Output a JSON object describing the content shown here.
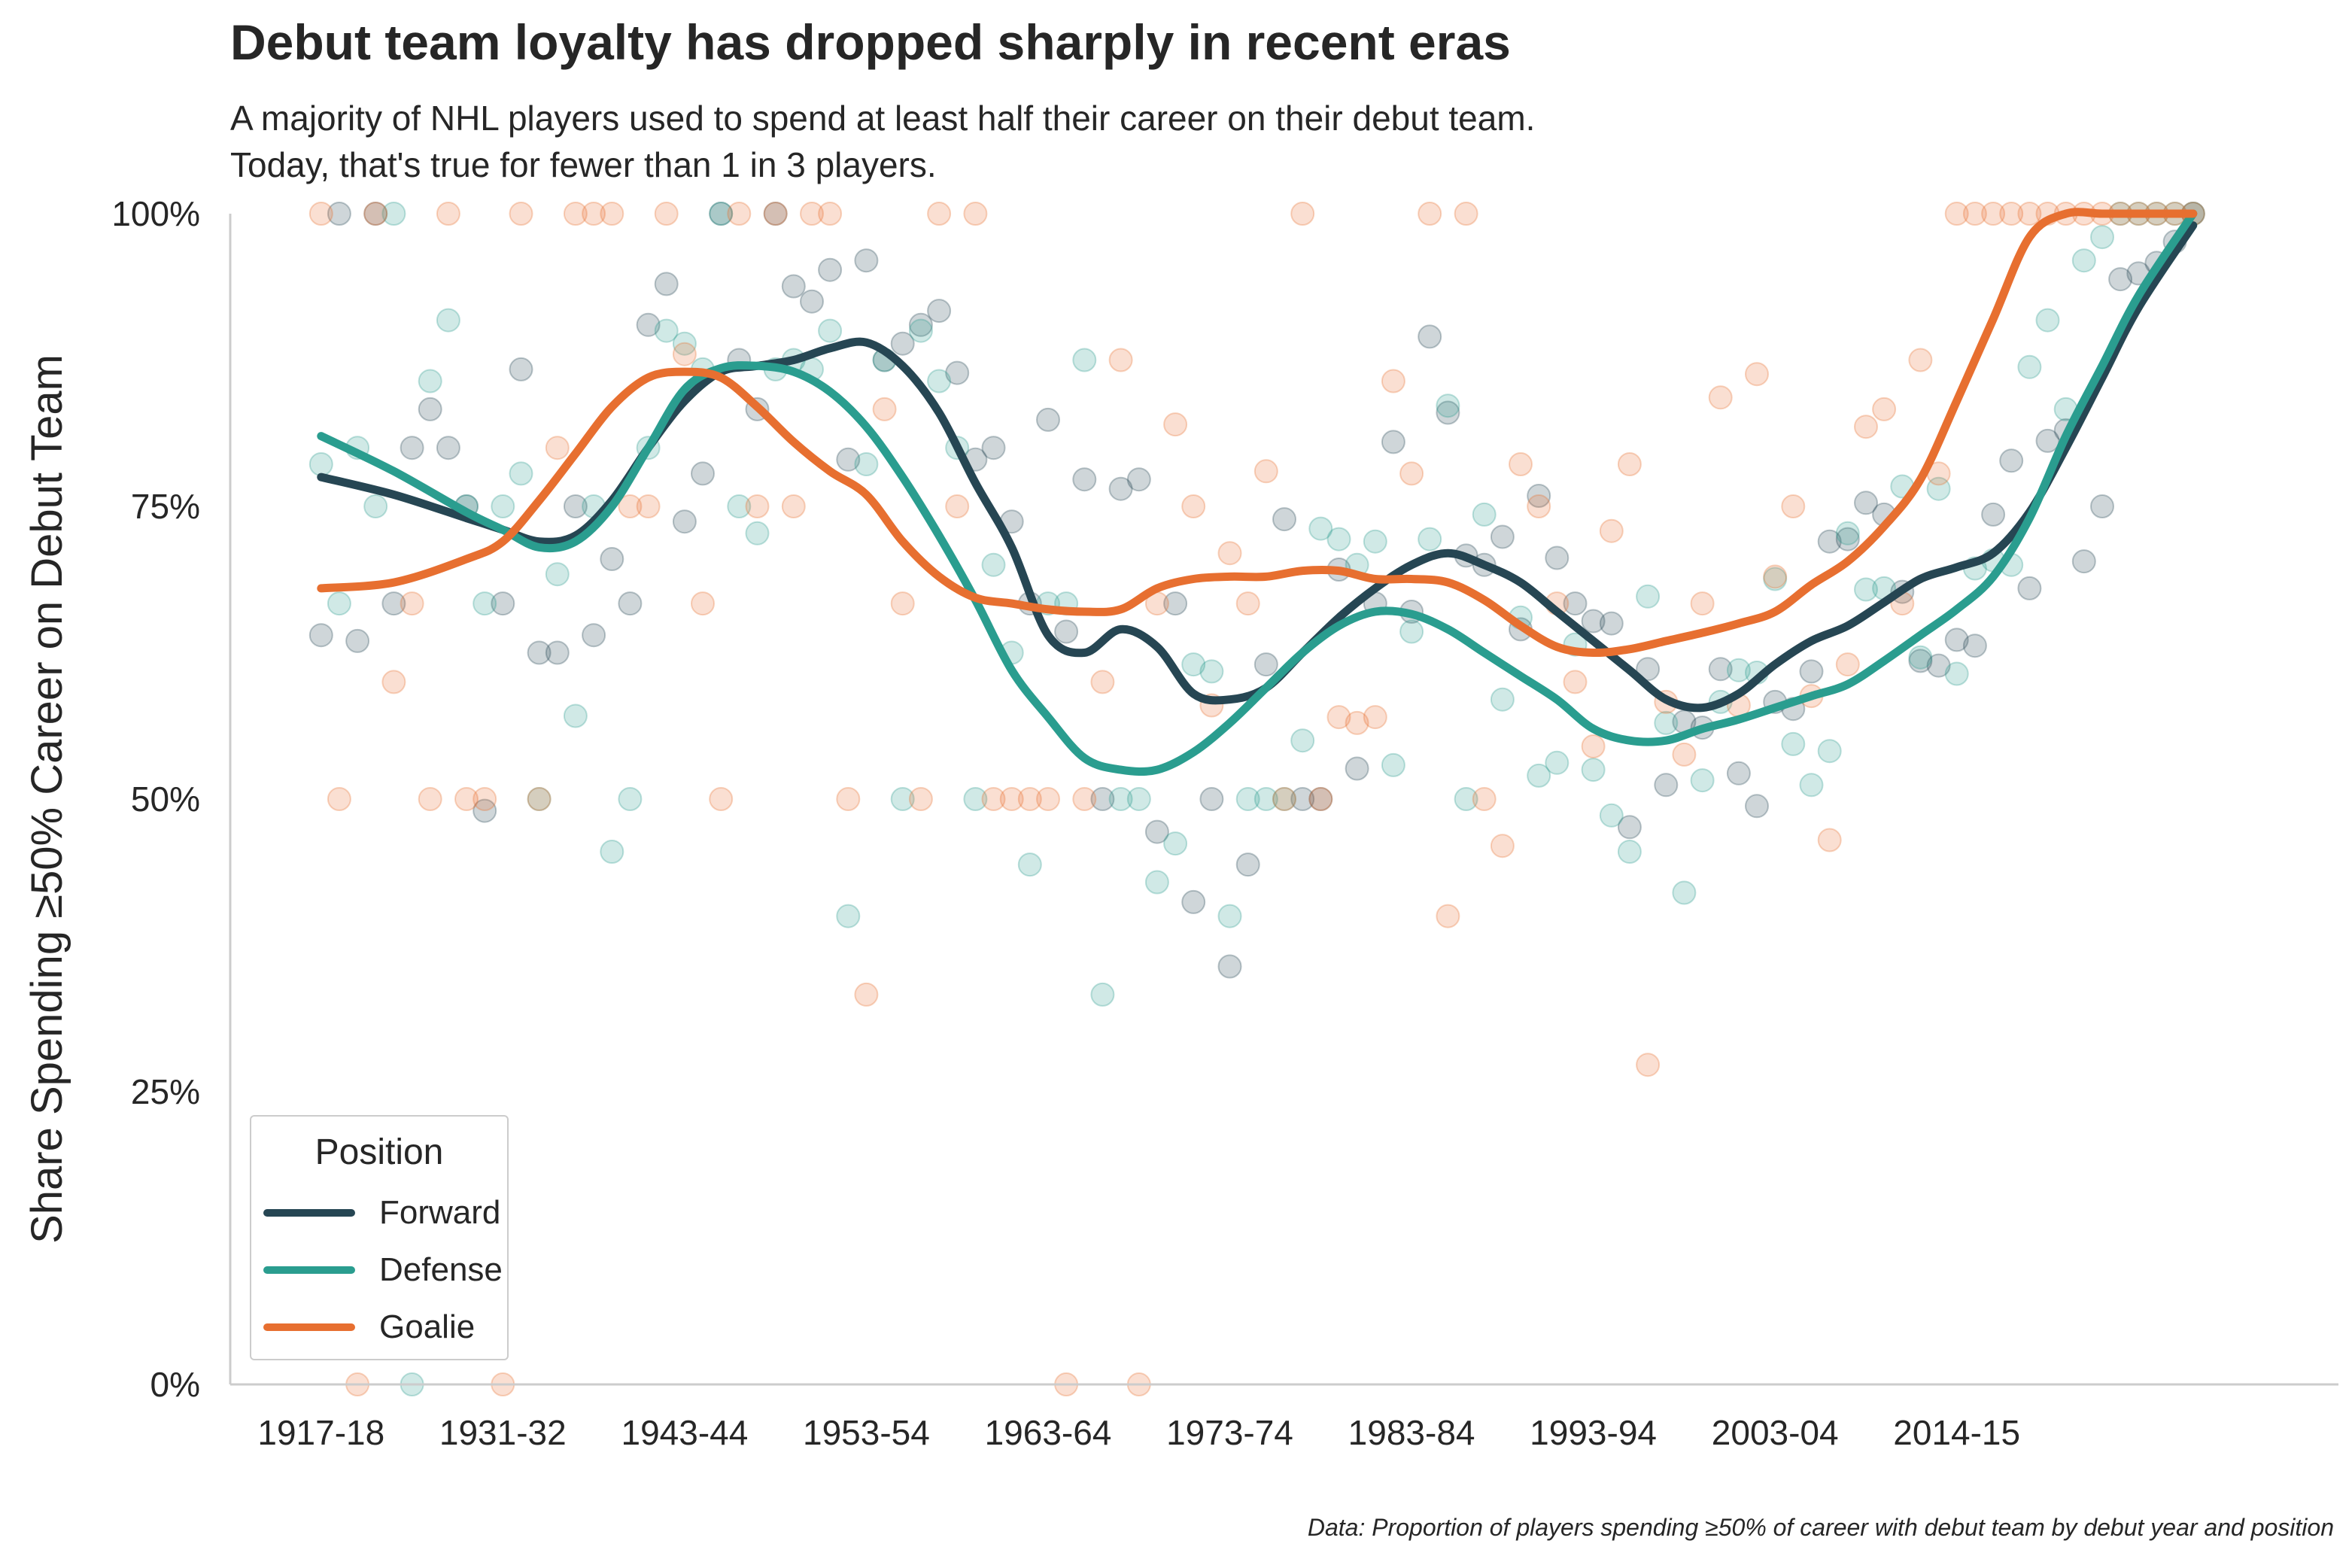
{
  "title": "Debut team loyalty has dropped sharply in recent eras",
  "subtitle": [
    "A majority of NHL players used to spend at least half their career on their debut team.",
    "Today, that's true for fewer than 1 in 3 players."
  ],
  "footnote": "Data: Proportion of players spending ≥50% of career with debut team by debut year and position",
  "colors": {
    "Forward": "#264653",
    "Defense": "#2a9d8f",
    "Goalie": "#e76f30"
  },
  "chart_data": {
    "type": "line",
    "ylabel": "Share Spending ≥50% Career on Debut Team",
    "xlabel": "",
    "ylim": [
      0,
      1
    ],
    "yticks": [
      0,
      0.25,
      0.5,
      0.75,
      1.0
    ],
    "ytick_labels": [
      "0%",
      "25%",
      "50%",
      "75%",
      "100%"
    ],
    "xticks": [
      {
        "x": 0,
        "label": "1917-18"
      },
      {
        "x": 10,
        "label": "1931-32"
      },
      {
        "x": 20,
        "label": "1943-44"
      },
      {
        "x": 30,
        "label": "1953-54"
      },
      {
        "x": 40,
        "label": "1963-64"
      },
      {
        "x": 50,
        "label": "1973-74"
      },
      {
        "x": 60,
        "label": "1983-84"
      },
      {
        "x": 70,
        "label": "1993-94"
      },
      {
        "x": 80,
        "label": "2003-04"
      },
      {
        "x": 90,
        "label": "2014-15"
      }
    ],
    "xlim": [
      -5,
      111
    ],
    "grid": false,
    "legend_title": "Position",
    "legend_position": "lower-left",
    "trend_lines": [
      {
        "name": "Forward",
        "x": [
          0,
          4,
          8,
          10,
          12,
          14,
          16,
          18,
          20,
          22,
          24,
          26,
          28,
          30,
          32,
          34,
          36,
          38,
          40,
          42,
          44,
          46,
          48,
          50,
          52,
          54,
          56,
          58,
          60,
          62,
          64,
          66,
          68,
          70,
          72,
          74,
          76,
          78,
          80,
          82,
          84,
          86,
          88,
          90,
          92,
          94,
          96,
          98,
          100,
          103
        ],
        "y": [
          0.775,
          0.76,
          0.74,
          0.73,
          0.72,
          0.725,
          0.755,
          0.8,
          0.84,
          0.865,
          0.87,
          0.875,
          0.885,
          0.89,
          0.87,
          0.83,
          0.77,
          0.715,
          0.64,
          0.625,
          0.645,
          0.63,
          0.59,
          0.585,
          0.595,
          0.625,
          0.655,
          0.68,
          0.7,
          0.71,
          0.7,
          0.685,
          0.66,
          0.635,
          0.61,
          0.585,
          0.578,
          0.59,
          0.615,
          0.635,
          0.648,
          0.668,
          0.688,
          0.698,
          0.71,
          0.745,
          0.8,
          0.86,
          0.92,
          0.99
        ]
      },
      {
        "name": "Defense",
        "x": [
          0,
          4,
          8,
          10,
          12,
          14,
          16,
          18,
          20,
          22,
          24,
          26,
          28,
          30,
          32,
          34,
          36,
          38,
          40,
          42,
          44,
          46,
          48,
          50,
          52,
          54,
          56,
          58,
          60,
          62,
          64,
          66,
          68,
          70,
          72,
          74,
          76,
          78,
          80,
          82,
          84,
          86,
          88,
          90,
          92,
          94,
          96,
          98,
          100,
          103
        ],
        "y": [
          0.81,
          0.78,
          0.745,
          0.73,
          0.715,
          0.72,
          0.75,
          0.8,
          0.85,
          0.868,
          0.87,
          0.865,
          0.848,
          0.818,
          0.775,
          0.725,
          0.67,
          0.61,
          0.57,
          0.535,
          0.525,
          0.525,
          0.54,
          0.565,
          0.595,
          0.625,
          0.648,
          0.66,
          0.658,
          0.645,
          0.625,
          0.605,
          0.585,
          0.56,
          0.55,
          0.55,
          0.56,
          0.568,
          0.578,
          0.588,
          0.598,
          0.618,
          0.64,
          0.662,
          0.69,
          0.74,
          0.81,
          0.87,
          0.93,
          1.0
        ]
      },
      {
        "name": "Goalie",
        "x": [
          0,
          4,
          8,
          10,
          12,
          14,
          16,
          18,
          20,
          22,
          24,
          26,
          28,
          30,
          32,
          34,
          36,
          38,
          40,
          42,
          44,
          46,
          48,
          50,
          52,
          54,
          56,
          58,
          60,
          62,
          64,
          66,
          68,
          70,
          72,
          74,
          76,
          78,
          80,
          82,
          84,
          86,
          88,
          90,
          92,
          94,
          96,
          98,
          100,
          103
        ],
        "y": [
          0.68,
          0.685,
          0.705,
          0.72,
          0.755,
          0.795,
          0.835,
          0.86,
          0.865,
          0.86,
          0.835,
          0.805,
          0.78,
          0.76,
          0.72,
          0.69,
          0.672,
          0.667,
          0.662,
          0.66,
          0.662,
          0.68,
          0.688,
          0.69,
          0.69,
          0.695,
          0.695,
          0.688,
          0.688,
          0.685,
          0.67,
          0.648,
          0.63,
          0.625,
          0.628,
          0.635,
          0.642,
          0.65,
          0.66,
          0.683,
          0.703,
          0.733,
          0.773,
          0.84,
          0.91,
          0.98,
          1.0,
          1.0,
          1.0,
          1.0
        ]
      }
    ],
    "scatter_points": [
      {
        "name": "Forward",
        "x": [
          0,
          1,
          2,
          3,
          4,
          5,
          6,
          7,
          8,
          9,
          10,
          11,
          12,
          13,
          14,
          15,
          16,
          17,
          18,
          19,
          20,
          21,
          22,
          23,
          24,
          25,
          26,
          27,
          28,
          29,
          30,
          31,
          32,
          33,
          34,
          35,
          36,
          37,
          38,
          39,
          40,
          41,
          42,
          43,
          44,
          45,
          46,
          47,
          48,
          49,
          50,
          51,
          52,
          53,
          54,
          55,
          56,
          57,
          58,
          59,
          60,
          61,
          62,
          63,
          64,
          65,
          66,
          67,
          68,
          69,
          70,
          71,
          72,
          73,
          74,
          75,
          76,
          77,
          78,
          79,
          80,
          81,
          82,
          83,
          84,
          85,
          86,
          87,
          88,
          89,
          90,
          91,
          92,
          93,
          94,
          95,
          96,
          97,
          98,
          99,
          100,
          101,
          102,
          103
        ],
        "y": [
          0.64,
          1.0,
          0.635,
          1.0,
          0.667,
          0.8,
          0.833,
          0.8,
          0.75,
          0.49,
          0.667,
          0.867,
          0.625,
          0.625,
          0.75,
          0.64,
          0.705,
          0.667,
          0.905,
          0.94,
          0.737,
          0.778,
          1.0,
          0.875,
          0.833,
          1.0,
          0.938,
          0.925,
          0.952,
          0.79,
          0.96,
          0.875,
          0.889,
          0.905,
          0.917,
          0.864,
          0.79,
          0.8,
          0.737,
          0.667,
          0.824,
          0.643,
          0.773,
          0.5,
          0.765,
          0.773,
          0.472,
          0.667,
          0.412,
          0.5,
          0.357,
          0.444,
          0.615,
          0.739,
          0.5,
          0.5,
          0.696,
          0.526,
          0.667,
          0.805,
          0.66,
          0.895,
          0.83,
          0.708,
          0.7,
          0.724,
          0.645,
          0.759,
          0.706,
          0.667,
          0.652,
          0.65,
          0.476,
          0.611,
          0.512,
          0.566,
          0.561,
          0.611,
          0.522,
          0.494,
          0.583,
          0.577,
          0.609,
          0.72,
          0.722,
          0.753,
          0.743,
          0.677,
          0.618,
          0.614,
          0.636,
          0.631,
          0.743,
          0.789,
          0.68,
          0.806,
          0.815,
          0.703,
          0.75,
          0.944,
          0.949,
          0.958,
          0.976,
          1.0
        ]
      },
      {
        "name": "Defense",
        "x": [
          0,
          1,
          2,
          3,
          4,
          5,
          6,
          7,
          8,
          9,
          10,
          11,
          12,
          13,
          14,
          15,
          16,
          17,
          18,
          19,
          20,
          21,
          22,
          23,
          24,
          25,
          26,
          27,
          28,
          29,
          30,
          31,
          32,
          33,
          34,
          35,
          36,
          37,
          38,
          39,
          40,
          41,
          42,
          43,
          44,
          45,
          46,
          47,
          48,
          49,
          50,
          51,
          52,
          53,
          54,
          55,
          56,
          57,
          58,
          59,
          60,
          61,
          62,
          63,
          64,
          65,
          66,
          67,
          68,
          69,
          70,
          71,
          72,
          73,
          74,
          75,
          76,
          77,
          78,
          79,
          80,
          81,
          82,
          83,
          84,
          85,
          86,
          87,
          88,
          89,
          90,
          91,
          92,
          93,
          94,
          95,
          96,
          97,
          98,
          99,
          100,
          101,
          102,
          103
        ],
        "y": [
          0.786,
          0.667,
          0.8,
          0.75,
          1.0,
          0.0,
          0.857,
          0.909,
          0.75,
          0.667,
          0.75,
          0.778,
          0.5,
          0.692,
          0.571,
          0.75,
          0.455,
          0.5,
          0.8,
          0.9,
          0.889,
          0.867,
          1.0,
          0.75,
          0.727,
          0.867,
          0.875,
          0.867,
          0.9,
          0.4,
          0.786,
          0.875,
          0.5,
          0.9,
          0.857,
          0.8,
          0.5,
          0.7,
          0.625,
          0.444,
          0.667,
          0.667,
          0.875,
          0.333,
          0.5,
          0.5,
          0.429,
          0.462,
          0.615,
          0.609,
          0.4,
          0.5,
          0.5,
          0.5,
          0.55,
          0.731,
          0.722,
          0.7,
          0.72,
          0.529,
          0.643,
          0.722,
          0.836,
          0.5,
          0.743,
          0.585,
          0.655,
          0.52,
          0.531,
          0.632,
          0.525,
          0.486,
          0.455,
          0.673,
          0.565,
          0.42,
          0.516,
          0.583,
          0.61,
          0.608,
          0.688,
          0.547,
          0.512,
          0.541,
          0.727,
          0.679,
          0.68,
          0.767,
          0.621,
          0.765,
          0.607,
          0.697,
          0.704,
          0.7,
          0.869,
          0.909,
          0.833,
          0.96,
          0.98,
          1.0,
          1.0,
          1.0,
          1.0,
          1.0
        ]
      },
      {
        "name": "Goalie",
        "x": [
          0,
          1,
          2,
          3,
          4,
          5,
          6,
          7,
          8,
          9,
          10,
          11,
          12,
          13,
          14,
          15,
          16,
          17,
          18,
          19,
          20,
          21,
          22,
          23,
          24,
          25,
          26,
          27,
          28,
          29,
          30,
          31,
          32,
          33,
          34,
          35,
          36,
          37,
          38,
          39,
          40,
          41,
          42,
          43,
          44,
          45,
          46,
          47,
          48,
          49,
          50,
          51,
          52,
          53,
          54,
          55,
          56,
          57,
          58,
          59,
          60,
          61,
          62,
          63,
          64,
          65,
          66,
          67,
          68,
          69,
          70,
          71,
          72,
          73,
          74,
          75,
          76,
          77,
          78,
          79,
          80,
          81,
          82,
          83,
          84,
          85,
          86,
          87,
          88,
          89,
          90,
          91,
          92,
          93,
          94,
          95,
          96,
          97,
          98,
          99,
          100,
          101,
          102,
          103
        ],
        "y": [
          1.0,
          0.5,
          0.0,
          1.0,
          0.6,
          0.667,
          0.5,
          1.0,
          0.5,
          0.5,
          0.0,
          1.0,
          0.5,
          0.8,
          1.0,
          1.0,
          1.0,
          0.75,
          0.75,
          1.0,
          0.88,
          0.667,
          0.5,
          1.0,
          0.75,
          1.0,
          0.75,
          1.0,
          1.0,
          0.5,
          0.333,
          0.833,
          0.667,
          0.5,
          1.0,
          0.75,
          1.0,
          0.5,
          0.5,
          0.5,
          0.5,
          0.0,
          0.5,
          0.6,
          0.875,
          0.0,
          0.667,
          0.82,
          0.75,
          0.58,
          0.71,
          0.667,
          0.78,
          0.5,
          1.0,
          0.5,
          0.57,
          0.565,
          0.57,
          0.857,
          0.778,
          1.0,
          0.4,
          1.0,
          0.5,
          0.46,
          0.786,
          0.75,
          0.667,
          0.6,
          0.545,
          0.729,
          0.786,
          0.273,
          0.583,
          0.538,
          0.667,
          0.843,
          0.58,
          0.863,
          0.69,
          0.75,
          0.588,
          0.465,
          0.615,
          0.818,
          0.833,
          0.667,
          0.875,
          0.778,
          1.0,
          1.0,
          1.0,
          1.0,
          1.0,
          1.0,
          1.0,
          1.0,
          1.0,
          1.0,
          1.0,
          1.0,
          1.0,
          1.0
        ]
      }
    ]
  }
}
